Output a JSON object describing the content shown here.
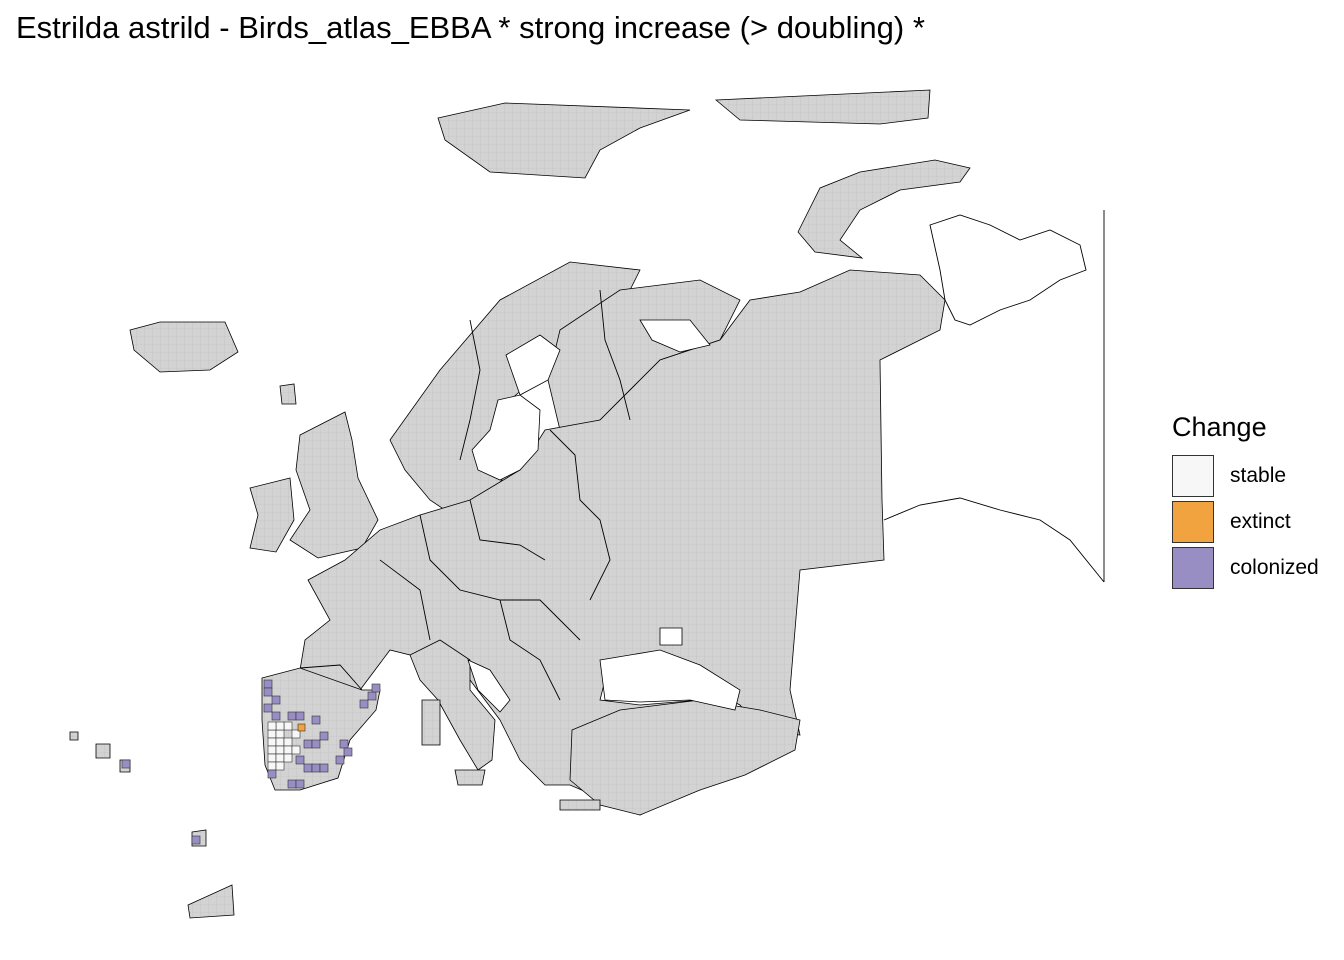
{
  "title": "Estrilda astrild - Birds_atlas_EBBA * strong increase (> doubling) *",
  "legend": {
    "title": "Change",
    "items": [
      {
        "label": "stable",
        "color": "#f7f7f7"
      },
      {
        "label": "extinct",
        "color": "#f1a340"
      },
      {
        "label": "colonized",
        "color": "#998ec3"
      }
    ]
  },
  "colors": {
    "no_data_grid": "#d3d3d3",
    "grid_line": "#bdbdbd",
    "border": "#000000",
    "background": "#ffffff"
  }
}
